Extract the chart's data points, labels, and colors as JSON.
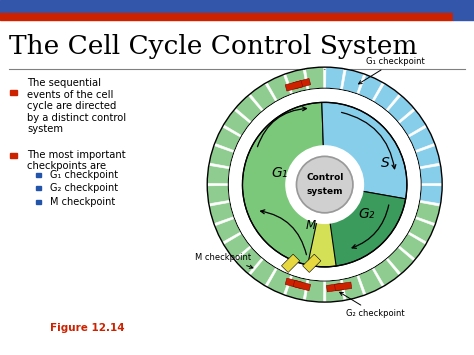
{
  "title": "The Cell Cycle Control System",
  "title_fontsize": 19,
  "background_color": "#ffffff",
  "bullet1": "The sequential\nevents of the cell\ncycle are directed\nby a distinct control\nsystem",
  "bullet2": "The most important\ncheckpoints are",
  "sub_bullets": [
    "G₁ checkpoint",
    "G₂ checkpoint",
    "M checkpoint"
  ],
  "figure_label": "Figure 12.14",
  "color_G1": "#7bc87b",
  "color_G2": "#3a9b5c",
  "color_S": "#87ceeb",
  "color_M": "#d4e157",
  "color_outer_green": "#8fcc8f",
  "color_outer_blue": "#87ceeb",
  "color_control": "#d0d0d0",
  "color_checkpoint_red": "#cc2200",
  "color_header_blue": "#3355aa",
  "color_header_red": "#cc2200",
  "color_bullet_red": "#cc2200",
  "color_bullet_blue": "#2255aa",
  "color_fig_label": "#cc2200"
}
